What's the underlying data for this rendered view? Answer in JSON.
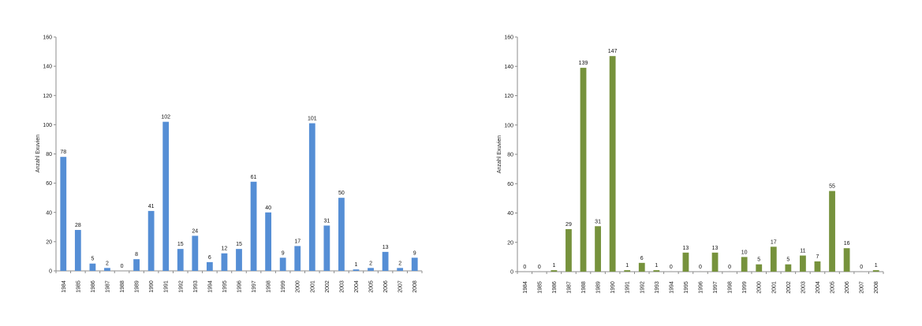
{
  "chart_data": [
    {
      "type": "bar",
      "ylabel": "Anzahl Exuvien",
      "ylim": [
        0,
        160
      ],
      "yticks": [
        0,
        20,
        40,
        60,
        80,
        100,
        120,
        140,
        160
      ],
      "color": "#558ed5",
      "categories": [
        "1984",
        "1985",
        "1986",
        "1987",
        "1988",
        "1989",
        "1990",
        "1991",
        "1992",
        "1993",
        "1994",
        "1995",
        "1996",
        "1997",
        "1998",
        "1999",
        "2000",
        "2001",
        "2002",
        "2003",
        "2004",
        "2005",
        "2006",
        "2007",
        "2008"
      ],
      "values": [
        78,
        28,
        5,
        2,
        0,
        8,
        41,
        102,
        15,
        24,
        6,
        12,
        15,
        61,
        40,
        9,
        17,
        101,
        31,
        50,
        1,
        2,
        13,
        2,
        9
      ]
    },
    {
      "type": "bar",
      "ylabel": "Anzahl Exuvien",
      "ylim": [
        0,
        160
      ],
      "yticks": [
        0,
        20,
        40,
        60,
        80,
        100,
        120,
        140,
        160
      ],
      "color": "#76923c",
      "categories": [
        "1984",
        "1985",
        "1986",
        "1987",
        "1988",
        "1989",
        "1990",
        "1991",
        "1992",
        "1993",
        "1994",
        "1995",
        "1996",
        "1997",
        "1998",
        "1999",
        "2000",
        "2001",
        "2002",
        "2003",
        "2004",
        "2005",
        "2006",
        "2007",
        "2008"
      ],
      "values": [
        0,
        0,
        1,
        29,
        139,
        31,
        147,
        1,
        6,
        1,
        0,
        13,
        0,
        13,
        0,
        10,
        5,
        17,
        5,
        11,
        7,
        55,
        16,
        0,
        1
      ]
    }
  ]
}
